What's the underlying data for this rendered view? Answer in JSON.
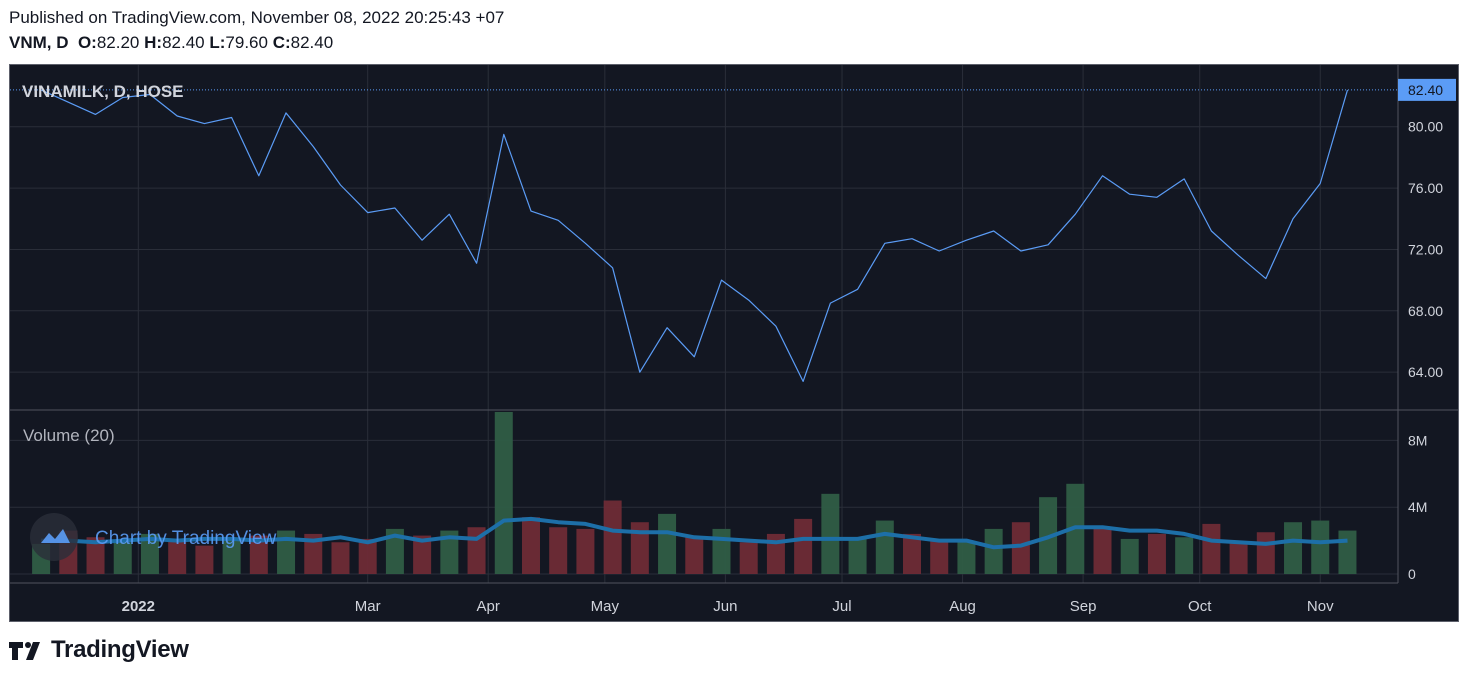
{
  "header": {
    "published": "Published on TradingView.com, November 08, 2022 20:25:43 +07",
    "symbol": "VNM, D",
    "o_label": "O:",
    "o": "82.20",
    "h_label": "H:",
    "h": "82.40",
    "l_label": "L:",
    "l": "79.60",
    "c_label": "C:",
    "c": "82.40"
  },
  "footer": {
    "brand": "TradingView"
  },
  "colors": {
    "background": "#131722",
    "grid": "#2a2e39",
    "price_line": "#5b9cf6",
    "last_price_tag": "#5b9cf6",
    "volume_up": "#2f5d46",
    "volume_down": "#6e2b36",
    "volume_ma": "#1d6fa8",
    "axis_text": "#d1d4dc"
  },
  "chart_data": [
    {
      "type": "line",
      "title": "VINAMILK, D, HOSE",
      "last_value_label": "82.40",
      "y_ticks": [
        "64.00",
        "68.00",
        "72.00",
        "76.00",
        "80.00"
      ],
      "ylim": [
        61.6,
        83.5
      ],
      "x_labels": [
        "2022",
        "Mar",
        "Apr",
        "May",
        "Jun",
        "Jul",
        "Aug",
        "Sep",
        "Oct",
        "Nov"
      ],
      "grid": true,
      "x": [
        "2021-12-07",
        "2021-12-14",
        "2021-12-21",
        "2021-12-28",
        "2022-01-04",
        "2022-01-11",
        "2022-01-18",
        "2022-01-25",
        "2022-02-01",
        "2022-02-08",
        "2022-02-15",
        "2022-02-22",
        "2022-03-01",
        "2022-03-08",
        "2022-03-15",
        "2022-03-22",
        "2022-03-29",
        "2022-04-05",
        "2022-04-12",
        "2022-04-19",
        "2022-04-26",
        "2022-05-03",
        "2022-05-10",
        "2022-05-17",
        "2022-05-24",
        "2022-05-31",
        "2022-06-07",
        "2022-06-14",
        "2022-06-21",
        "2022-06-28",
        "2022-07-05",
        "2022-07-12",
        "2022-07-19",
        "2022-07-26",
        "2022-08-02",
        "2022-08-09",
        "2022-08-16",
        "2022-08-23",
        "2022-08-30",
        "2022-09-06",
        "2022-09-13",
        "2022-09-20",
        "2022-09-27",
        "2022-10-04",
        "2022-10-11",
        "2022-10-18",
        "2022-10-25",
        "2022-11-01",
        "2022-11-08"
      ],
      "values": [
        82.4,
        81.6,
        80.8,
        81.9,
        82.1,
        80.7,
        80.2,
        80.6,
        76.8,
        80.9,
        78.7,
        76.2,
        74.4,
        74.7,
        72.6,
        74.3,
        71.1,
        79.5,
        74.5,
        73.9,
        72.4,
        70.8,
        64.0,
        66.9,
        65.0,
        70.0,
        68.7,
        67.0,
        63.4,
        68.5,
        69.4,
        72.4,
        72.7,
        71.9,
        72.6,
        73.2,
        71.9,
        72.3,
        74.3,
        76.8,
        75.6,
        75.4,
        76.6,
        73.2,
        71.6,
        70.1,
        74.0,
        76.3,
        82.4
      ]
    },
    {
      "type": "bar",
      "title": "Volume (20)",
      "y_ticks": [
        "0",
        "4M",
        "8M"
      ],
      "ylim": [
        0,
        9.4
      ],
      "watermark": "Chart by TradingView",
      "x": [
        "2021-12-07",
        "2021-12-14",
        "2021-12-21",
        "2021-12-28",
        "2022-01-04",
        "2022-01-11",
        "2022-01-18",
        "2022-01-25",
        "2022-02-01",
        "2022-02-08",
        "2022-02-15",
        "2022-02-22",
        "2022-03-01",
        "2022-03-08",
        "2022-03-15",
        "2022-03-22",
        "2022-03-29",
        "2022-04-05",
        "2022-04-12",
        "2022-04-19",
        "2022-04-26",
        "2022-05-03",
        "2022-05-10",
        "2022-05-17",
        "2022-05-24",
        "2022-05-31",
        "2022-06-07",
        "2022-06-14",
        "2022-06-21",
        "2022-06-28",
        "2022-07-05",
        "2022-07-12",
        "2022-07-19",
        "2022-07-26",
        "2022-08-02",
        "2022-08-09",
        "2022-08-16",
        "2022-08-23",
        "2022-08-30",
        "2022-09-06",
        "2022-09-13",
        "2022-09-20",
        "2022-09-27",
        "2022-10-04",
        "2022-10-11",
        "2022-10-18",
        "2022-10-25",
        "2022-11-01",
        "2022-11-08"
      ],
      "values": [
        1.8,
        2.6,
        2.2,
        1.9,
        2.4,
        2.1,
        1.7,
        2.0,
        2.3,
        2.6,
        2.4,
        1.9,
        2.1,
        2.7,
        2.3,
        2.6,
        2.8,
        9.7,
        3.4,
        2.8,
        2.7,
        4.4,
        3.1,
        3.6,
        2.2,
        2.7,
        1.9,
        2.4,
        3.3,
        4.8,
        2.2,
        3.2,
        2.4,
        2.0,
        1.9,
        2.7,
        3.1,
        4.6,
        5.4,
        2.8,
        2.1,
        2.4,
        2.2,
        3.0,
        1.9,
        2.5,
        3.1,
        3.2,
        2.6
      ],
      "direction": [
        "up",
        "down",
        "down",
        "up",
        "up",
        "down",
        "down",
        "up",
        "down",
        "up",
        "down",
        "down",
        "down",
        "up",
        "down",
        "up",
        "down",
        "up",
        "down",
        "down",
        "down",
        "down",
        "down",
        "up",
        "down",
        "up",
        "down",
        "down",
        "down",
        "up",
        "up",
        "up",
        "down",
        "down",
        "up",
        "up",
        "down",
        "up",
        "up",
        "down",
        "up",
        "down",
        "up",
        "down",
        "down",
        "down",
        "up",
        "up",
        "up"
      ],
      "ma_values": [
        2.0,
        2.0,
        1.9,
        2.0,
        2.1,
        2.0,
        2.1,
        2.1,
        2.0,
        2.1,
        2.0,
        2.2,
        1.9,
        2.3,
        2.0,
        2.2,
        2.1,
        3.2,
        3.3,
        3.1,
        3.0,
        2.6,
        2.5,
        2.5,
        2.2,
        2.1,
        2.0,
        1.9,
        2.1,
        2.1,
        2.1,
        2.4,
        2.2,
        2.0,
        2.0,
        1.6,
        1.7,
        2.2,
        2.8,
        2.8,
        2.6,
        2.6,
        2.4,
        2.0,
        1.9,
        1.8,
        2.0,
        1.9,
        2.0
      ]
    }
  ]
}
